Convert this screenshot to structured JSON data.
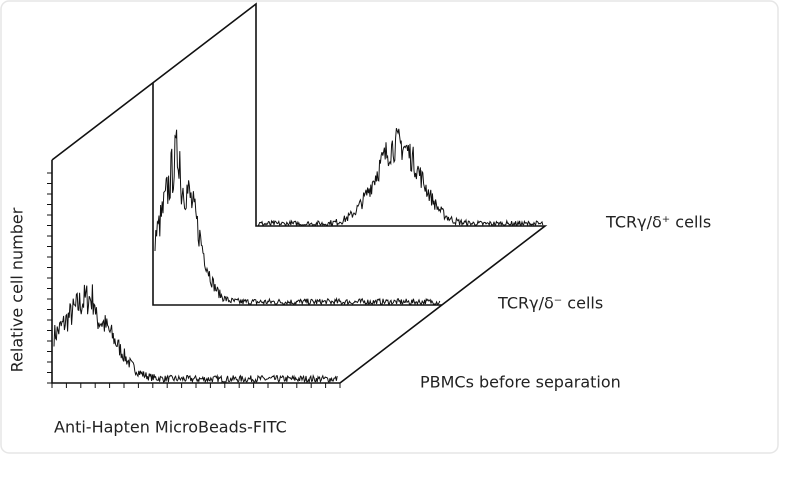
{
  "axis_labels": {
    "y": "Relative cell number",
    "x": "Anti-Hapten MicroBeads-FITC"
  },
  "histograms": [
    {
      "label": "PBMCs before separation"
    },
    {
      "label": "TCRγ/δ⁻ cells"
    },
    {
      "label": "TCRγ/δ⁺ cells"
    }
  ]
}
